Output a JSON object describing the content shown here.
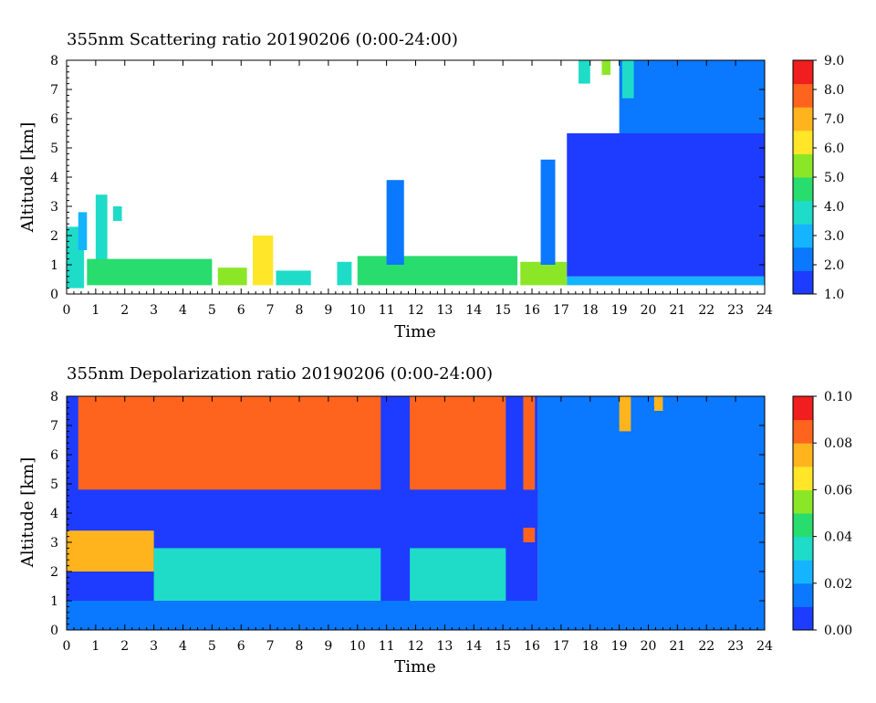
{
  "colormap": [
    "#1e3cff",
    "#0a78ff",
    "#14b4ff",
    "#1edcc8",
    "#28dc6e",
    "#8ce628",
    "#ffe628",
    "#ffb41e",
    "#ff641e",
    "#f01e1e"
  ],
  "chart_data": [
    {
      "type": "heatmap",
      "title": "355nm Scattering ratio  20190206 (0:00-24:00)",
      "xlabel": "Time",
      "ylabel": "Altitude [km]",
      "xlim": [
        0,
        24
      ],
      "ylim": [
        0,
        8
      ],
      "x_ticks": [
        "0",
        "1",
        "2",
        "3",
        "4",
        "5",
        "6",
        "7",
        "8",
        "9",
        "10",
        "11",
        "12",
        "13",
        "14",
        "15",
        "16",
        "17",
        "18",
        "19",
        "20",
        "21",
        "22",
        "23",
        "24"
      ],
      "y_ticks": [
        "0",
        "1",
        "2",
        "3",
        "4",
        "5",
        "6",
        "7",
        "8"
      ],
      "colorbar": {
        "min": 1.0,
        "max": 9.0,
        "ticks": [
          "1.0",
          "2.0",
          "3.0",
          "4.0",
          "5.0",
          "6.0",
          "7.0",
          "8.0",
          "9.0"
        ]
      },
      "features": [
        {
          "t0": 0.0,
          "t1": 0.6,
          "z0": 0.2,
          "z1": 2.3,
          "value": 4.0
        },
        {
          "t0": 0.4,
          "t1": 0.7,
          "z0": 1.5,
          "z1": 2.8,
          "value": 3.0
        },
        {
          "t0": 1.0,
          "t1": 1.4,
          "z0": 0.5,
          "z1": 3.4,
          "value": 3.5
        },
        {
          "t0": 1.6,
          "t1": 1.9,
          "z0": 2.5,
          "z1": 3.0,
          "value": 3.5
        },
        {
          "t0": 0.7,
          "t1": 5.0,
          "z0": 0.3,
          "z1": 1.2,
          "value": 4.5
        },
        {
          "t0": 5.2,
          "t1": 6.2,
          "z0": 0.3,
          "z1": 0.9,
          "value": 5.5
        },
        {
          "t0": 6.4,
          "t1": 7.1,
          "z0": 0.3,
          "z1": 2.0,
          "value": 6.0
        },
        {
          "t0": 7.2,
          "t1": 8.4,
          "z0": 0.3,
          "z1": 0.8,
          "value": 4.0
        },
        {
          "t0": 9.3,
          "t1": 9.8,
          "z0": 0.3,
          "z1": 1.1,
          "value": 4.0
        },
        {
          "t0": 10.0,
          "t1": 15.5,
          "z0": 0.3,
          "z1": 1.3,
          "value": 4.5
        },
        {
          "t0": 11.0,
          "t1": 11.6,
          "z0": 1.0,
          "z1": 3.9,
          "value": 2.0
        },
        {
          "t0": 15.6,
          "t1": 17.2,
          "z0": 0.3,
          "z1": 1.1,
          "value": 5.0
        },
        {
          "t0": 16.3,
          "t1": 16.8,
          "z0": 1.0,
          "z1": 4.6,
          "value": 2.0
        },
        {
          "t0": 17.2,
          "t1": 24.0,
          "z0": 0.3,
          "z1": 0.6,
          "value": 3.0
        },
        {
          "t0": 17.2,
          "t1": 24.0,
          "z0": 0.6,
          "z1": 5.5,
          "value": 1.5
        },
        {
          "t0": 19.0,
          "t1": 24.0,
          "z0": 5.5,
          "z1": 8.0,
          "value": 1.8
        },
        {
          "t0": 17.6,
          "t1": 18.0,
          "z0": 7.2,
          "z1": 8.0,
          "value": 4.0
        },
        {
          "t0": 18.4,
          "t1": 18.7,
          "z0": 7.5,
          "z1": 8.0,
          "value": 5.0
        },
        {
          "t0": 19.1,
          "t1": 19.5,
          "z0": 6.7,
          "z1": 8.0,
          "value": 3.5
        }
      ]
    },
    {
      "type": "heatmap",
      "title": "355nm Depolarization ratio  20190206 (0:00-24:00)",
      "xlabel": "Time",
      "ylabel": "Altitude [km]",
      "xlim": [
        0,
        24
      ],
      "ylim": [
        0,
        8
      ],
      "x_ticks": [
        "0",
        "1",
        "2",
        "3",
        "4",
        "5",
        "6",
        "7",
        "8",
        "9",
        "10",
        "11",
        "12",
        "13",
        "14",
        "15",
        "16",
        "17",
        "18",
        "19",
        "20",
        "21",
        "22",
        "23",
        "24"
      ],
      "y_ticks": [
        "0",
        "1",
        "2",
        "3",
        "4",
        "5",
        "6",
        "7",
        "8"
      ],
      "colorbar": {
        "min": 0.0,
        "max": 0.1,
        "ticks": [
          "0.00",
          "0.02",
          "0.04",
          "0.06",
          "0.08",
          "0.10"
        ]
      },
      "features": [
        {
          "t0": 0.0,
          "t1": 16.2,
          "z0": 0.0,
          "z1": 8.0,
          "value": 0.01
        },
        {
          "t0": 0.4,
          "t1": 10.8,
          "z0": 4.8,
          "z1": 8.0,
          "value": 0.085
        },
        {
          "t0": 11.8,
          "t1": 15.1,
          "z0": 4.8,
          "z1": 8.0,
          "value": 0.085
        },
        {
          "t0": 15.7,
          "t1": 16.1,
          "z0": 3.0,
          "z1": 8.0,
          "value": 0.085
        },
        {
          "t0": 0.0,
          "t1": 16.2,
          "z0": 3.5,
          "z1": 4.8,
          "value": 0.005
        },
        {
          "t0": 0.0,
          "t1": 3.0,
          "z0": 2.0,
          "z1": 3.4,
          "value": 0.075
        },
        {
          "t0": 3.0,
          "t1": 10.8,
          "z0": 1.0,
          "z1": 2.8,
          "value": 0.04
        },
        {
          "t0": 11.8,
          "t1": 15.1,
          "z0": 1.0,
          "z1": 2.8,
          "value": 0.04
        },
        {
          "t0": 0.0,
          "t1": 16.2,
          "z0": 0.0,
          "z1": 1.0,
          "value": 0.02
        },
        {
          "t0": 16.2,
          "t1": 24.0,
          "z0": 0.0,
          "z1": 8.0,
          "value": 0.015
        },
        {
          "t0": 19.0,
          "t1": 19.4,
          "z0": 6.8,
          "z1": 8.0,
          "value": 0.07
        },
        {
          "t0": 20.2,
          "t1": 20.5,
          "z0": 7.5,
          "z1": 8.0,
          "value": 0.07
        }
      ]
    }
  ]
}
